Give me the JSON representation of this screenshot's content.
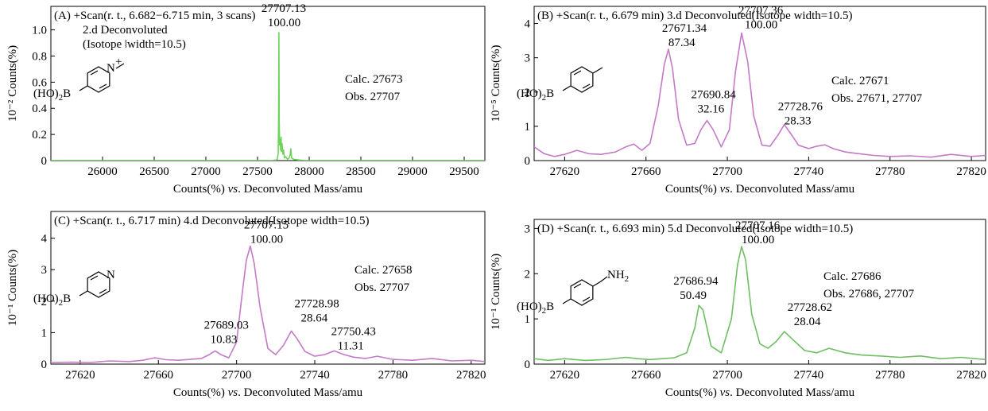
{
  "chart_data": [
    {
      "panel": "A",
      "type": "line",
      "color": "#6cd45a",
      "title_lines": [
        "(A) +Scan(r. t., 6.682−6.715 min, 3 scans)",
        "2.d Deconvoluted",
        "(Isotope ⧘width=10.5)"
      ],
      "xlabel_pre": "Counts(%) ",
      "xlabel_vs": "vs",
      "xlabel_post": ". Deconvoluted Mass/amu",
      "ylabel": "10⁻² Counts(%)",
      "xlim": [
        25500,
        29700
      ],
      "ylim": [
        0,
        1.18
      ],
      "xticks": [
        26000,
        26500,
        27000,
        27500,
        28000,
        28500,
        29000,
        29500
      ],
      "xtick_labels": [
        "26000",
        "26500",
        "27000",
        "27500",
        "28000",
        "28500",
        "29000",
        "29500"
      ],
      "yticks": [
        0,
        0.2,
        0.4,
        0.6,
        0.8,
        1.0
      ],
      "ytick_labels": [
        "0",
        "0.2",
        "0.4",
        "0.6",
        "0.8",
        "1.0"
      ],
      "calc": "Calc. 27673",
      "obs": "Obs.  27707",
      "peaks": [
        {
          "mass": "27707.13",
          "intensity": "100.00",
          "x": 27707,
          "y": 0.98
        }
      ],
      "x": [
        25500,
        27640,
        27680,
        27690,
        27700,
        27704,
        27707,
        27710,
        27714,
        27720,
        27724,
        27728,
        27732,
        27738,
        27745,
        27752,
        27760,
        27772,
        27790,
        27805,
        27815,
        27822,
        27830,
        27850,
        27950,
        29700
      ],
      "y": [
        0,
        0,
        0.005,
        0.01,
        0.05,
        0.3,
        0.98,
        0.3,
        0.12,
        0.16,
        0.08,
        0.18,
        0.07,
        0.13,
        0.05,
        0.08,
        0.02,
        0.03,
        0.01,
        0.02,
        0.04,
        0.09,
        0.02,
        0.01,
        0,
        0
      ],
      "structure_text": {
        "sub": "(HO)",
        "two": "2",
        "b": "B",
        "n": "N",
        "plus": "+"
      }
    },
    {
      "panel": "B",
      "type": "line",
      "color": "#c47ac8",
      "title_lines": [
        "(B)  +Scan(r. t., 6.679 min) 3.d Deconvoluted(Isotope width=10.5)"
      ],
      "xlabel_pre": "Counts(%) ",
      "xlabel_vs": "vs",
      "xlabel_post": ". Deconvoluted Mass/amu",
      "ylabel": "10⁻⁵ Counts(%)",
      "xlim": [
        27605,
        27827
      ],
      "ylim": [
        0,
        4.5
      ],
      "xticks": [
        27620,
        27660,
        27700,
        27740,
        27780,
        27820
      ],
      "xtick_labels": [
        "27620",
        "27660",
        "27700",
        "27740",
        "27780",
        "27820"
      ],
      "yticks": [
        0,
        1,
        2,
        3,
        4
      ],
      "ytick_labels": [
        "0",
        "1",
        "2",
        "3",
        "4"
      ],
      "calc": "Calc. 27671",
      "obs": "Obs.  27671, 27707",
      "peaks": [
        {
          "mass": "27671.34",
          "intensity": "87.34",
          "x": 27671,
          "y": 3.25
        },
        {
          "mass": "27690.84",
          "intensity": "32.16",
          "x": 27690,
          "y": 1.17
        },
        {
          "mass": "27707.36",
          "intensity": "100.00",
          "x": 27707,
          "y": 3.72
        },
        {
          "mass": "27728.76",
          "intensity": "28.33",
          "x": 27728,
          "y": 1.05
        }
      ],
      "x": [
        27605,
        27610,
        27615,
        27620,
        27626,
        27632,
        27638,
        27645,
        27650,
        27654,
        27658,
        27662,
        27666,
        27669,
        27671,
        27673,
        27676,
        27680,
        27684,
        27687,
        27690,
        27693,
        27697,
        27701,
        27704,
        27707,
        27710,
        27713,
        27717,
        27721,
        27725,
        27728,
        27731,
        27735,
        27740,
        27744,
        27748,
        27752,
        27758,
        27765,
        27772,
        27780,
        27790,
        27800,
        27810,
        27820,
        27827
      ],
      "y": [
        0.4,
        0.2,
        0.12,
        0.18,
        0.3,
        0.2,
        0.18,
        0.25,
        0.4,
        0.48,
        0.3,
        0.5,
        1.6,
        2.8,
        3.25,
        2.7,
        1.2,
        0.45,
        0.5,
        0.9,
        1.17,
        0.9,
        0.4,
        0.9,
        2.6,
        3.72,
        2.9,
        1.3,
        0.45,
        0.42,
        0.75,
        1.05,
        0.8,
        0.45,
        0.35,
        0.42,
        0.46,
        0.35,
        0.25,
        0.2,
        0.15,
        0.12,
        0.14,
        0.1,
        0.18,
        0.12,
        0.15
      ],
      "structure_text": {
        "sub": "(HO)",
        "two": "2",
        "b": "B"
      }
    },
    {
      "panel": "C",
      "type": "line",
      "color": "#c47ac8",
      "title_lines": [
        "(C) +Scan(r. t., 6.717 min) 4.d Deconvoluted(Isotope width=10.5)"
      ],
      "xlabel_pre": "Counts(%) ",
      "xlabel_vs": "vs",
      "xlabel_post": ". Deconvoluted Mass/amu",
      "ylabel": "10⁻¹ Counts(%)",
      "xlim": [
        27605,
        27827
      ],
      "ylim": [
        0,
        4.85
      ],
      "xticks": [
        27620,
        27660,
        27700,
        27740,
        27780,
        27820
      ],
      "xtick_labels": [
        "27620",
        "27660",
        "27700",
        "27740",
        "27780",
        "27820"
      ],
      "yticks": [
        0,
        1,
        2,
        3,
        4
      ],
      "ytick_labels": [
        "0",
        "1",
        "2",
        "3",
        "4"
      ],
      "calc": "Calc. 27658",
      "obs": "Obs.  27707",
      "peaks": [
        {
          "mass": "27689.03",
          "intensity": "10.83",
          "x": 27689,
          "y": 0.42
        },
        {
          "mass": "27707.15",
          "intensity": "100.00",
          "x": 27707,
          "y": 3.75
        },
        {
          "mass": "27728.98",
          "intensity": "28.64",
          "x": 27728,
          "y": 1.05
        },
        {
          "mass": "27750.43",
          "intensity": "11.31",
          "x": 27750,
          "y": 0.42
        }
      ],
      "x": [
        27605,
        27615,
        27625,
        27635,
        27645,
        27652,
        27658,
        27664,
        27670,
        27676,
        27682,
        27686,
        27689,
        27692,
        27696,
        27700,
        27703,
        27705,
        27707,
        27709,
        27712,
        27716,
        27720,
        27724,
        27728,
        27731,
        27735,
        27740,
        27745,
        27750,
        27755,
        27760,
        27766,
        27772,
        27780,
        27790,
        27800,
        27810,
        27820,
        27827
      ],
      "y": [
        0.05,
        0.06,
        0.05,
        0.1,
        0.08,
        0.12,
        0.2,
        0.14,
        0.12,
        0.15,
        0.18,
        0.3,
        0.42,
        0.3,
        0.2,
        0.7,
        2.3,
        3.3,
        3.75,
        3.2,
        1.8,
        0.5,
        0.3,
        0.6,
        1.05,
        0.8,
        0.4,
        0.25,
        0.3,
        0.42,
        0.3,
        0.22,
        0.18,
        0.25,
        0.15,
        0.12,
        0.18,
        0.1,
        0.12,
        0.08
      ],
      "structure_text": {
        "sub": "(HO)",
        "two": "2",
        "b": "B",
        "n": "N"
      }
    },
    {
      "panel": "D",
      "type": "line",
      "color": "#6fbe63",
      "title_lines": [
        "(D) +Scan(r. t., 6.693 min) 5.d Deconvoluted(Isotope width=10.5)"
      ],
      "xlabel_pre": "Counts(%) ",
      "xlabel_vs": "vs",
      "xlabel_post": ". Deconvoluted Mass/amu",
      "ylabel": "10⁻¹ Counts(%)",
      "xlim": [
        27605,
        27827
      ],
      "ylim": [
        0,
        3.2
      ],
      "xticks": [
        27620,
        27660,
        27700,
        27740,
        27780,
        27820
      ],
      "xtick_labels": [
        "27620",
        "27660",
        "27700",
        "27740",
        "27780",
        "27820"
      ],
      "yticks": [
        0,
        1,
        2,
        3
      ],
      "ytick_labels": [
        "0",
        "1",
        "2",
        "3"
      ],
      "calc": "Calc. 27686",
      "obs": "Obs.  27686, 27707",
      "peaks": [
        {
          "mass": "27686.94",
          "intensity": "50.49",
          "x": 27686,
          "y": 1.3
        },
        {
          "mass": "27707.16",
          "intensity": "100.00",
          "x": 27707,
          "y": 2.6
        },
        {
          "mass": "27728.62",
          "intensity": "28.04",
          "x": 27728,
          "y": 0.72
        }
      ],
      "x": [
        27605,
        27612,
        27620,
        27630,
        27640,
        27650,
        27656,
        27662,
        27668,
        27674,
        27680,
        27684,
        27686,
        27688,
        27692,
        27697,
        27702,
        27705,
        27707,
        27709,
        27712,
        27716,
        27720,
        27724,
        27728,
        27732,
        27738,
        27744,
        27750,
        27758,
        27766,
        27775,
        27785,
        27795,
        27805,
        27815,
        27827
      ],
      "y": [
        0.12,
        0.08,
        0.12,
        0.08,
        0.1,
        0.15,
        0.12,
        0.1,
        0.12,
        0.14,
        0.25,
        0.8,
        1.3,
        1.2,
        0.4,
        0.25,
        1.0,
        2.2,
        2.6,
        2.3,
        1.1,
        0.45,
        0.35,
        0.5,
        0.72,
        0.55,
        0.3,
        0.25,
        0.35,
        0.25,
        0.2,
        0.18,
        0.15,
        0.18,
        0.12,
        0.15,
        0.1
      ],
      "structure_text": {
        "sub": "(HO)",
        "two": "2",
        "b": "B",
        "nh": "NH",
        "nh_sub": "2"
      }
    }
  ]
}
